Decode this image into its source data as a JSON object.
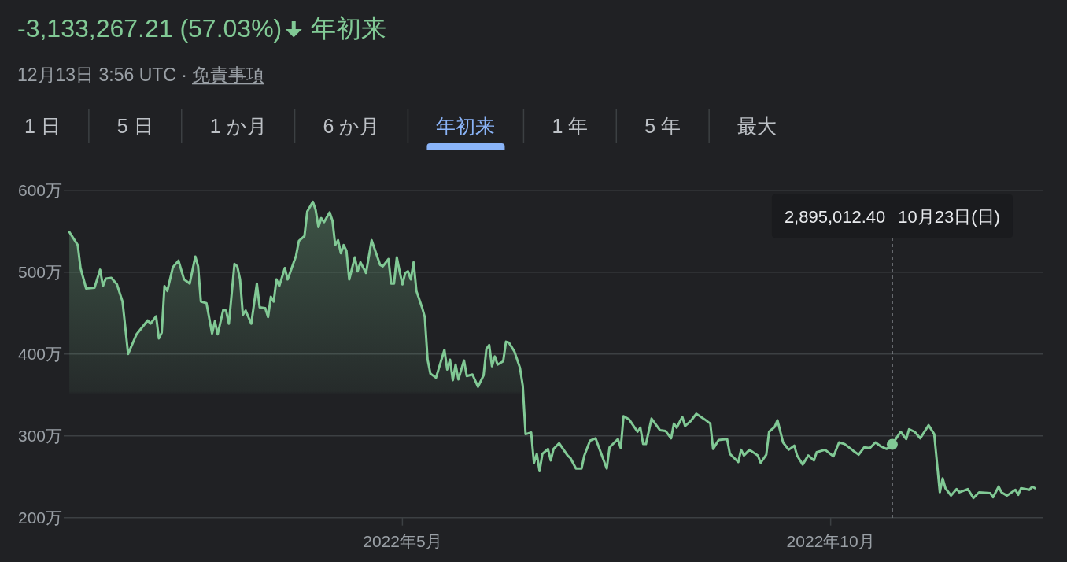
{
  "chart_data": {
    "type": "area",
    "title": "-3,133,267.21 (57.03%)",
    "subtitle": "年初来",
    "annotations": [
      "12月13日 3:56 UTC ·",
      "免責事項",
      "1 日",
      "5 日",
      "1 か月",
      "6 か月",
      "年初来",
      "1 年",
      "5 年",
      "最大",
      "2,895,012.40"
    ],
    "ref_lines": [
      {
        "axis": "x",
        "value": "2022-10-23",
        "label": "10月23日(日)",
        "color": "#9aa0a6",
        "line_style": "dashed"
      }
    ],
    "color": "#81c995",
    "x": [
      "2022-01-02",
      "2022-01-05",
      "2022-01-06",
      "2022-01-08",
      "2022-01-11",
      "2022-01-13",
      "2022-01-14",
      "2022-01-15",
      "2022-01-17",
      "2022-01-19",
      "2022-01-21",
      "2022-01-23",
      "2022-01-26",
      "2022-01-30",
      "2022-01-31",
      "2022-02-02",
      "2022-02-03",
      "2022-02-04",
      "2022-02-05",
      "2022-02-06",
      "2022-02-08",
      "2022-02-10",
      "2022-02-12",
      "2022-02-14",
      "2022-02-16",
      "2022-02-17",
      "2022-02-18",
      "2022-02-20",
      "2022-02-22",
      "2022-02-23",
      "2022-02-24",
      "2022-02-26",
      "2022-02-27",
      "2022-02-28",
      "2022-03-02",
      "2022-03-03",
      "2022-03-04",
      "2022-03-05",
      "2022-03-06",
      "2022-03-08",
      "2022-03-10",
      "2022-03-11",
      "2022-03-13",
      "2022-03-14",
      "2022-03-15",
      "2022-03-16",
      "2022-03-17",
      "2022-03-18",
      "2022-03-20",
      "2022-03-21",
      "2022-03-24",
      "2022-03-25",
      "2022-03-27",
      "2022-03-28",
      "2022-03-30",
      "2022-03-31",
      "2022-04-01",
      "2022-04-02",
      "2022-04-03",
      "2022-04-05",
      "2022-04-06",
      "2022-04-07",
      "2022-04-08",
      "2022-04-09",
      "2022-04-10",
      "2022-04-11",
      "2022-04-12",
      "2022-04-14",
      "2022-04-15",
      "2022-04-16",
      "2022-04-18",
      "2022-04-20",
      "2022-04-23",
      "2022-04-24",
      "2022-04-26",
      "2022-04-27",
      "2022-04-28",
      "2022-04-29",
      "2022-04-30",
      "2022-05-01",
      "2022-05-02",
      "2022-05-03",
      "2022-05-04",
      "2022-05-05",
      "2022-05-06",
      "2022-05-08",
      "2022-05-09",
      "2022-05-10",
      "2022-05-11",
      "2022-05-13",
      "2022-05-16",
      "2022-05-17",
      "2022-05-18",
      "2022-05-19",
      "2022-05-20",
      "2022-05-21",
      "2022-05-23",
      "2022-05-24",
      "2022-05-26",
      "2022-05-28",
      "2022-05-30",
      "2022-05-31",
      "2022-06-01",
      "2022-06-02",
      "2022-06-03",
      "2022-06-04",
      "2022-06-06",
      "2022-06-07",
      "2022-06-08",
      "2022-06-10",
      "2022-06-12",
      "2022-06-13",
      "2022-06-14",
      "2022-06-16",
      "2022-06-17",
      "2022-06-18",
      "2022-06-19",
      "2022-06-20",
      "2022-06-22",
      "2022-06-23",
      "2022-06-24",
      "2022-06-26",
      "2022-06-29",
      "2022-06-30",
      "2022-07-02",
      "2022-07-04",
      "2022-07-05",
      "2022-07-07",
      "2022-07-09",
      "2022-07-13",
      "2022-07-14",
      "2022-07-17",
      "2022-07-18",
      "2022-07-19",
      "2022-07-21",
      "2022-07-24",
      "2022-07-25",
      "2022-07-26",
      "2022-07-27",
      "2022-07-29",
      "2022-08-01",
      "2022-08-03",
      "2022-08-05",
      "2022-08-06",
      "2022-08-07",
      "2022-08-09",
      "2022-08-10",
      "2022-08-12",
      "2022-08-14",
      "2022-08-17",
      "2022-08-19",
      "2022-08-20",
      "2022-08-22",
      "2022-08-25",
      "2022-08-26",
      "2022-08-29",
      "2022-08-30",
      "2022-08-31",
      "2022-09-02",
      "2022-09-05",
      "2022-09-06",
      "2022-09-08",
      "2022-09-09",
      "2022-09-11",
      "2022-09-12",
      "2022-09-14",
      "2022-09-16",
      "2022-09-18",
      "2022-09-19",
      "2022-09-21",
      "2022-09-23",
      "2022-09-25",
      "2022-09-26",
      "2022-09-29",
      "2022-10-02",
      "2022-10-04",
      "2022-10-06",
      "2022-10-09",
      "2022-10-11",
      "2022-10-13",
      "2022-10-15",
      "2022-10-17",
      "2022-10-19",
      "2022-10-21",
      "2022-10-23",
      "2022-10-26",
      "2022-10-28",
      "2022-10-29",
      "2022-10-31",
      "2022-11-02",
      "2022-11-05",
      "2022-11-07",
      "2022-11-09",
      "2022-11-10",
      "2022-11-11",
      "2022-11-13",
      "2022-11-15",
      "2022-11-16",
      "2022-11-19",
      "2022-11-21",
      "2022-11-23",
      "2022-11-27",
      "2022-11-28",
      "2022-11-30",
      "2022-12-01",
      "2022-12-03",
      "2022-12-06",
      "2022-12-07",
      "2022-12-08",
      "2022-12-11",
      "2022-12-12",
      "2022-12-13"
    ],
    "values": [
      549,
      533,
      505,
      480,
      481,
      503,
      483,
      492,
      493,
      485,
      464,
      400,
      424,
      441,
      437,
      446,
      419,
      426,
      483,
      477,
      506,
      514,
      491,
      486,
      519,
      507,
      464,
      462,
      425,
      440,
      424,
      454,
      453,
      437,
      510,
      507,
      491,
      448,
      453,
      437,
      486,
      457,
      456,
      445,
      470,
      464,
      491,
      483,
      505,
      491,
      520,
      538,
      544,
      574,
      586,
      576,
      555,
      566,
      561,
      573,
      563,
      533,
      539,
      523,
      533,
      526,
      491,
      518,
      501,
      512,
      499,
      539,
      509,
      507,
      516,
      486,
      486,
      518,
      501,
      485,
      499,
      501,
      491,
      512,
      477,
      457,
      445,
      393,
      376,
      371,
      405,
      381,
      393,
      368,
      387,
      369,
      392,
      373,
      375,
      360,
      374,
      406,
      411,
      385,
      397,
      387,
      391,
      415,
      414,
      403,
      383,
      361,
      302,
      304,
      267,
      278,
      257,
      278,
      284,
      270,
      284,
      291,
      276,
      273,
      260,
      260,
      276,
      294,
      297,
      260,
      286,
      296,
      285,
      324,
      320,
      305,
      310,
      290,
      290,
      321,
      307,
      306,
      297,
      315,
      310,
      323,
      312,
      318,
      327,
      320,
      315,
      284,
      295,
      296,
      278,
      268,
      283,
      276,
      283,
      276,
      267,
      277,
      305,
      311,
      319,
      292,
      283,
      288,
      276,
      265,
      276,
      270,
      280,
      283,
      275,
      292,
      290,
      282,
      277,
      286,
      285,
      292,
      287,
      284,
      289.5,
      305,
      296,
      308,
      305,
      297,
      313,
      302,
      231,
      248,
      236,
      227,
      235,
      231,
      235,
      224,
      231,
      230,
      225,
      238,
      231,
      227,
      234,
      228,
      236,
      234,
      238,
      236
    ],
    "xlim": [
      "2021-12-31",
      "2022-12-16"
    ],
    "xticks": [
      {
        "value": "2022-05-01",
        "label": "2022年5月"
      },
      {
        "value": "2022-10-01",
        "label": "2022年10月"
      }
    ],
    "ylim": [
      200,
      600
    ],
    "yticks": [
      {
        "value": 200,
        "label": "200万"
      },
      {
        "value": 300,
        "label": "300万"
      },
      {
        "value": 400,
        "label": "400万"
      },
      {
        "value": 500,
        "label": "500万"
      },
      {
        "value": 600,
        "label": "600万"
      }
    ],
    "grid": "y"
  }
}
